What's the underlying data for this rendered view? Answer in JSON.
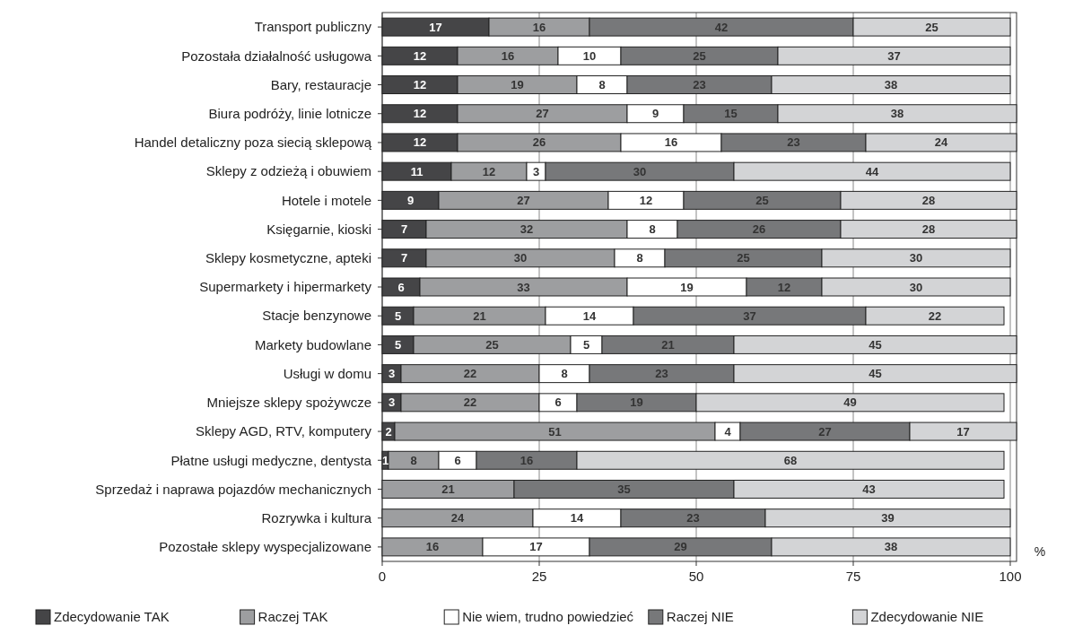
{
  "chart_data": {
    "type": "bar",
    "orientation": "horizontal",
    "stacked": true,
    "xlabel": "%",
    "categories": [
      "Transport publiczny",
      "Pozostała działalność usługowa",
      "Bary, restauracje",
      "Biura podróży, linie lotnicze",
      "Handel detaliczny poza siecią sklepową",
      "Sklepy z odzieżą i obuwiem",
      "Hotele i motele",
      "Księgarnie, kioski",
      "Sklepy kosmetyczne, apteki",
      "Supermarkety i hipermarkety",
      "Stacje benzynowe",
      "Markety budowlane",
      "Usługi w domu",
      "Mniejsze sklepy spożywcze",
      "Sklepy AGD, RTV, komputery",
      "Płatne usługi medyczne, dentysta",
      "Sprzedaż i naprawa pojazdów mechanicznych",
      "Rozrywka i kultura",
      "Pozostałe sklepy wyspecjalizowane"
    ],
    "series": [
      {
        "name": "Zdecydowanie TAK",
        "color": "#454547",
        "values": [
          17,
          12,
          12,
          12,
          12,
          11,
          9,
          7,
          7,
          6,
          5,
          5,
          3,
          3,
          2,
          1,
          0,
          0,
          0
        ],
        "value_labels": [
          "17",
          "12",
          "12",
          "12",
          "12",
          "11",
          "9",
          "7",
          "7",
          "6",
          "5",
          "5",
          "3",
          "3",
          "2",
          "1",
          null,
          null,
          null
        ]
      },
      {
        "name": "Raczej TAK",
        "color": "#9d9ea0",
        "values": [
          16,
          16,
          19,
          27,
          26,
          12,
          27,
          32,
          30,
          33,
          21,
          25,
          22,
          22,
          51,
          8,
          21,
          24,
          16
        ],
        "value_labels": [
          "16",
          "16",
          "19",
          "27",
          "26",
          "12",
          "27",
          "32",
          "30",
          "33",
          "21",
          "25",
          "22",
          "22",
          "51",
          "8",
          "21",
          "24",
          "16"
        ]
      },
      {
        "name": "Nie wiem, trudno powiedzieć",
        "color": "#ffffff",
        "values": [
          0,
          10,
          8,
          9,
          16,
          3,
          12,
          8,
          8,
          19,
          14,
          5,
          8,
          6,
          4,
          6,
          0,
          14,
          17
        ],
        "value_labels": [
          null,
          "10",
          "8",
          "9",
          "16",
          "3",
          "12",
          "8",
          "8",
          "19",
          "14",
          "5",
          "8",
          "6",
          "4",
          "6",
          null,
          "14",
          "17"
        ]
      },
      {
        "name": "Raczej NIE",
        "color": "#77787a",
        "values": [
          42,
          25,
          23,
          15,
          23,
          30,
          25,
          26,
          25,
          12,
          37,
          21,
          23,
          19,
          27,
          16,
          35,
          23,
          29
        ],
        "value_labels": [
          "42",
          "25",
          "23",
          "15",
          "23",
          "30",
          "25",
          "26",
          "25",
          "12",
          "37",
          "21",
          "23",
          "19",
          "27",
          "16",
          "35",
          "23",
          "29"
        ]
      },
      {
        "name": "Zdecydowanie NIE",
        "color": "#d3d4d6",
        "values": [
          25,
          37,
          38,
          38,
          24,
          44,
          28,
          28,
          30,
          30,
          22,
          45,
          45,
          49,
          17,
          68,
          43,
          39,
          38
        ],
        "value_labels": [
          "25",
          "37",
          "38",
          "38",
          "24",
          "44",
          "28",
          "28",
          "30",
          "30",
          "22",
          "45",
          "45",
          "49",
          "17",
          "68",
          "43",
          "39",
          "38"
        ]
      }
    ],
    "xlim": [
      0,
      101
    ],
    "xticks": [
      0,
      25,
      50,
      75,
      100
    ],
    "grid": "x",
    "legend": "bottom"
  }
}
